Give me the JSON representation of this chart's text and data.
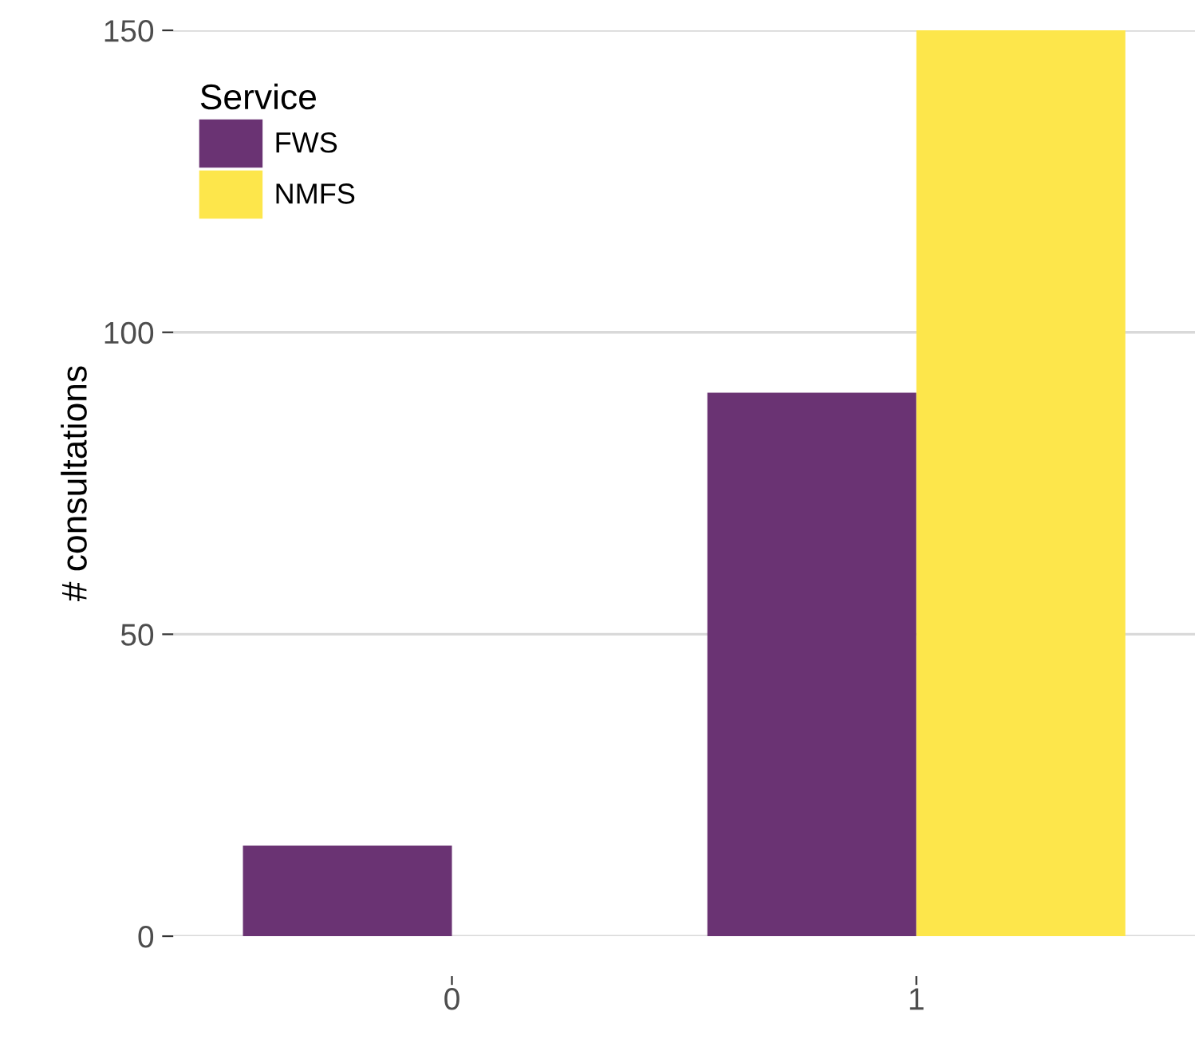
{
  "chart_data": {
    "type": "bar",
    "ylabel": "# consultations",
    "legend_title": "Service",
    "categories": [
      "0",
      "1"
    ],
    "series": [
      {
        "name": "FWS",
        "color": "#6a3373",
        "values": [
          15,
          90
        ]
      },
      {
        "name": "NMFS",
        "color": "#fde64b",
        "values": [
          0,
          150
        ]
      }
    ],
    "ylim": [
      0,
      150
    ],
    "yticks": [
      0,
      50,
      100,
      150
    ],
    "grid": "y",
    "legend": "top left"
  }
}
